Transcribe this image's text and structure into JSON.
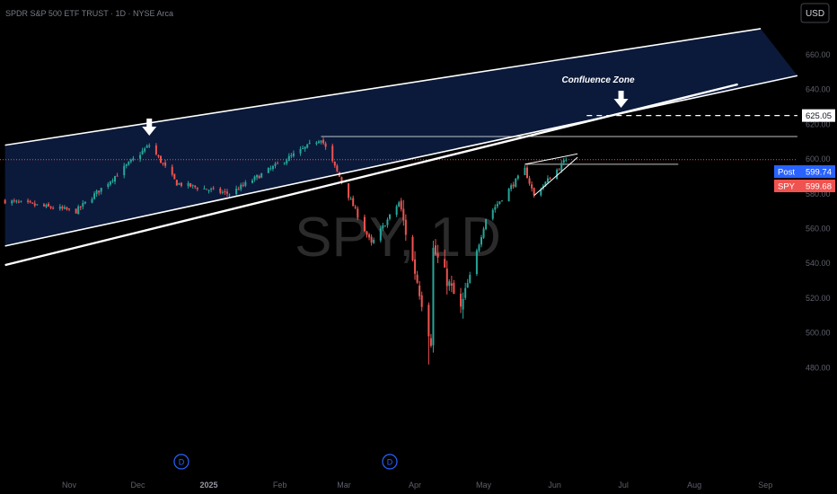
{
  "header": {
    "title": "SPDR S&P 500 ETF TRUST · 1D · NYSE Arca",
    "currency": "USD"
  },
  "watermark": "SPY, 1D",
  "annotations": {
    "confluence": "Confluence Zone",
    "resistance_label": "625.05",
    "dividend_marker": "D"
  },
  "price_tags": {
    "post": {
      "label": "Post",
      "value": "599.74"
    },
    "last": {
      "label": "SPY",
      "value": "599.68"
    }
  },
  "colors": {
    "up": "#26a69a",
    "down": "#ef5350",
    "channel_fill": "#0b1a3a",
    "post_tag": "#2962ff",
    "last_tag": "#ef5350",
    "dividend": "#2962ff"
  },
  "chart_data": {
    "type": "candlestick",
    "title": "SPDR S&P 500 ETF TRUST · 1D · NYSE Arca",
    "xlabel": "",
    "ylabel": "USD",
    "ylim": [
      470,
      675
    ],
    "yticks": [
      "660.00",
      "640.00",
      "620.00",
      "600.00",
      "580.00",
      "560.00",
      "540.00",
      "520.00",
      "500.00",
      "480.00"
    ],
    "xticks": [
      "Nov",
      "Dec",
      "2025",
      "Feb",
      "Mar",
      "Apr",
      "May",
      "Jun",
      "Jul",
      "Aug",
      "Sep"
    ],
    "grid": false,
    "series": [
      {
        "name": "SPY",
        "ohlc_segments": [
          {
            "start": "2024-10-04",
            "end": "2024-11-04",
            "from": 576,
            "to": 570
          },
          {
            "start": "2024-11-04",
            "end": "2024-12-06",
            "from": 570,
            "to": 608
          },
          {
            "start": "2024-12-06",
            "end": "2024-12-18",
            "from": 608,
            "to": 586
          },
          {
            "start": "2024-12-18",
            "end": "2025-01-10",
            "from": 586,
            "to": 580
          },
          {
            "start": "2025-01-10",
            "end": "2025-02-19",
            "from": 580,
            "to": 612
          },
          {
            "start": "2025-02-19",
            "end": "2025-03-13",
            "from": 612,
            "to": 551
          },
          {
            "start": "2025-03-13",
            "end": "2025-03-25",
            "from": 551,
            "to": 575
          },
          {
            "start": "2025-03-25",
            "end": "2025-04-08",
            "from": 575,
            "to": 496
          },
          {
            "start": "2025-04-08",
            "end": "2025-04-09",
            "from": 496,
            "to": 548
          },
          {
            "start": "2025-04-09",
            "end": "2025-04-21",
            "from": 548,
            "to": 513
          },
          {
            "start": "2025-04-21",
            "end": "2025-05-02",
            "from": 513,
            "to": 566
          },
          {
            "start": "2025-05-02",
            "end": "2025-05-19",
            "from": 566,
            "to": 594
          },
          {
            "start": "2025-05-19",
            "end": "2025-05-23",
            "from": 594,
            "to": 579
          },
          {
            "start": "2025-05-23",
            "end": "2025-06-06",
            "from": 579,
            "to": 599.68
          }
        ],
        "low_point": {
          "date": "2025-04-07",
          "value": 481.8
        },
        "last": 599.68,
        "post": 599.74
      }
    ],
    "drawings": {
      "channel_upper": {
        "from": {
          "date": "2024-10-04",
          "value": 608
        },
        "to": {
          "date": "2025-08-30",
          "value": 675
        }
      },
      "channel_lower": {
        "from": {
          "date": "2024-10-04",
          "value": 550
        },
        "to": {
          "date": "2025-09-15",
          "value": 648
        }
      },
      "trendline": {
        "from": {
          "date": "2024-10-04",
          "value": 539
        },
        "to": {
          "date": "2025-08-20",
          "value": 643
        }
      },
      "horizontal_resistance": {
        "value": 625.05,
        "from": "2025-06-15",
        "to": "2025-09-15"
      },
      "feb_high_line": {
        "value": 613,
        "from": "2025-02-19",
        "to": "2025-09-15"
      },
      "flag_line": {
        "value": 597,
        "from": "2025-05-19",
        "to": "2025-07-25"
      },
      "wedge_upper": {
        "from": {
          "date": "2025-05-19",
          "value": 597
        },
        "to": {
          "date": "2025-06-11",
          "value": 603
        }
      },
      "wedge_lower": {
        "from": {
          "date": "2025-05-23",
          "value": 579
        },
        "to": {
          "date": "2025-06-11",
          "value": 601
        }
      },
      "arrows": [
        {
          "date": "2024-12-06",
          "value": 613
        },
        {
          "date": "2025-06-30",
          "value": 629
        }
      ],
      "dividend_markers": [
        "2024-12-20",
        "2025-03-21"
      ]
    }
  }
}
